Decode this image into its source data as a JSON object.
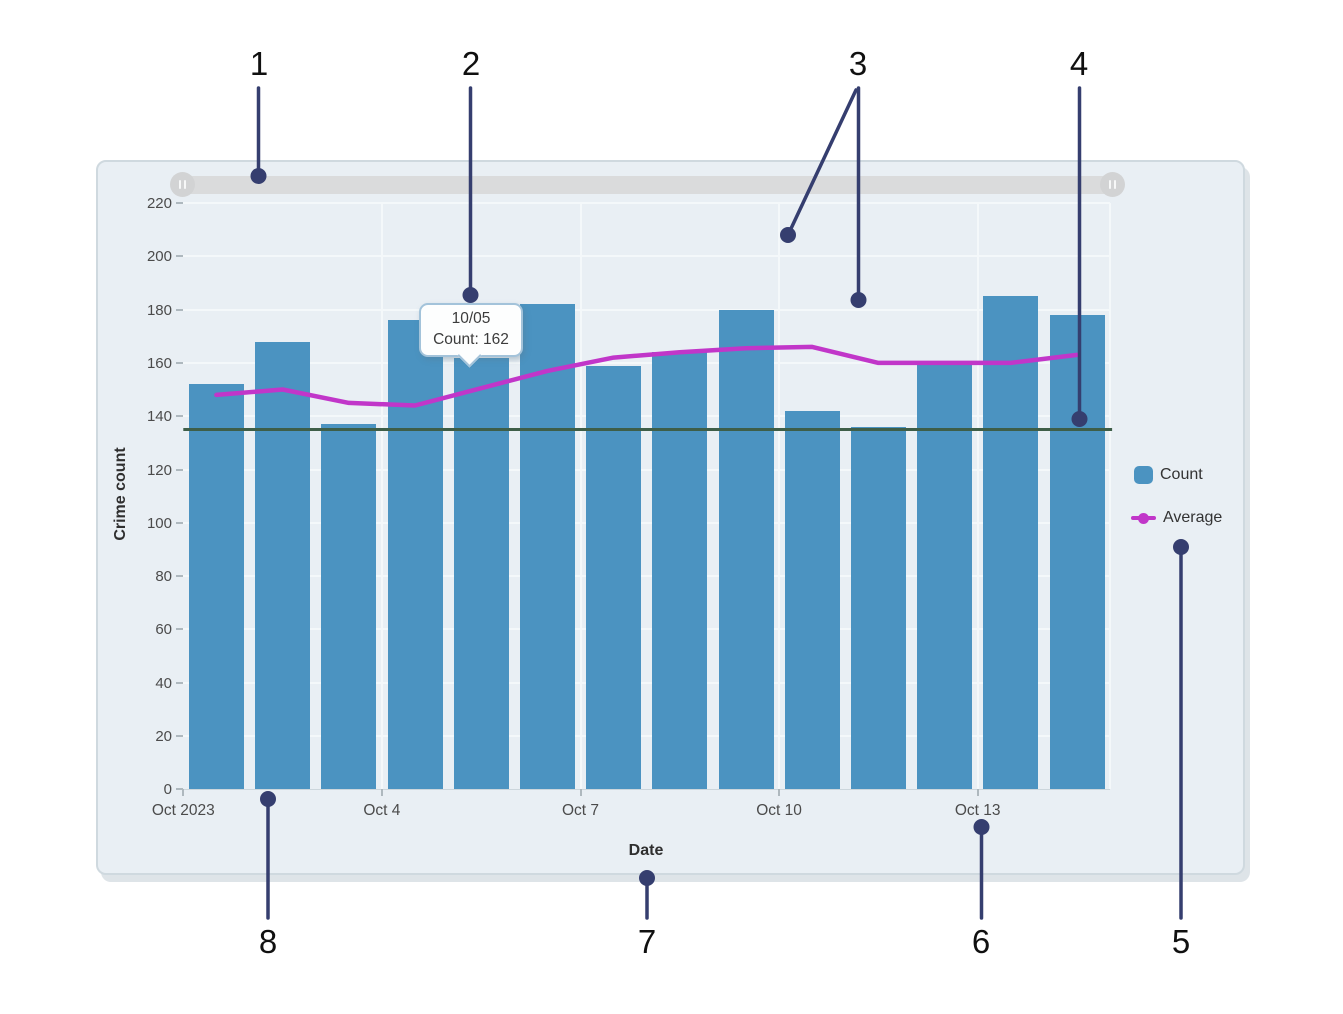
{
  "chart_data": {
    "type": "bar",
    "x": [
      "10/01",
      "10/02",
      "10/03",
      "10/04",
      "10/05",
      "10/06",
      "10/07",
      "10/08",
      "10/09",
      "10/10",
      "10/11",
      "10/12",
      "10/13",
      "10/14"
    ],
    "series": [
      {
        "name": "Count",
        "type": "bar",
        "color": "#4b93c1",
        "values": [
          152,
          168,
          137,
          176,
          162,
          182,
          159,
          164,
          180,
          142,
          136,
          160,
          185,
          178
        ]
      },
      {
        "name": "Average",
        "type": "line",
        "color": "#c136c9",
        "values": [
          148,
          150,
          145,
          144,
          150.5,
          157,
          162,
          164,
          165.5,
          166,
          160,
          160,
          160,
          163
        ]
      }
    ],
    "reference_line": {
      "value": 135,
      "color": "#3e5e48"
    },
    "title": "",
    "xlabel": "Date",
    "ylabel": "Crime count",
    "ylim": [
      0,
      220
    ],
    "y_ticks": [
      0,
      20,
      40,
      60,
      80,
      100,
      120,
      140,
      160,
      180,
      200,
      220
    ],
    "x_tick_labels": [
      "Oct 2023",
      "Oct 4",
      "Oct 7",
      "Oct 10",
      "Oct 13"
    ],
    "grid": true,
    "legend_position": "right-middle"
  },
  "tooltip": {
    "line1": "10/05",
    "line2": "Count: 162"
  },
  "legend": {
    "items": [
      {
        "label": "Count",
        "swatch": "blue-square"
      },
      {
        "label": "Average",
        "swatch": "magenta-line-dot"
      }
    ]
  },
  "scrollbar": {
    "type": "horizontal-range",
    "handles": [
      "pause-grip",
      "pause-grip"
    ]
  },
  "annotations": {
    "color": "#353e6f",
    "items": [
      {
        "label": "1",
        "num": [
          259,
          64
        ],
        "lines": [
          [
            258.5,
            88,
            258.5,
            176
          ]
        ],
        "dots": [
          [
            258.5,
            176
          ]
        ]
      },
      {
        "label": "2",
        "num": [
          471,
          64
        ],
        "lines": [
          [
            470.5,
            88,
            470.5,
            295
          ]
        ],
        "dots": [
          [
            470.5,
            295
          ]
        ]
      },
      {
        "label": "3",
        "num": [
          858,
          64
        ],
        "lines": [
          [
            858.5,
            88,
            858.5,
            300
          ],
          [
            856,
            90,
            788,
            235
          ]
        ],
        "dots": [
          [
            858.5,
            300
          ],
          [
            788,
            235
          ]
        ]
      },
      {
        "label": "4",
        "num": [
          1079,
          64
        ],
        "lines": [
          [
            1079.5,
            88,
            1079.5,
            419
          ]
        ],
        "dots": [
          [
            1079.5,
            419
          ]
        ]
      },
      {
        "label": "5",
        "num": [
          1181,
          942
        ],
        "lines": [
          [
            1181,
            547,
            1181,
            918
          ]
        ],
        "dots": [
          [
            1181,
            547
          ]
        ]
      },
      {
        "label": "6",
        "num": [
          981,
          942
        ],
        "lines": [
          [
            981.5,
            827,
            981.5,
            918
          ]
        ],
        "dots": [
          [
            981.5,
            827
          ]
        ]
      },
      {
        "label": "7",
        "num": [
          647,
          942
        ],
        "lines": [
          [
            647,
            878,
            647,
            918
          ]
        ],
        "dots": [
          [
            647,
            878
          ]
        ]
      },
      {
        "label": "8",
        "num": [
          268,
          942
        ],
        "lines": [
          [
            268,
            799,
            268,
            918
          ]
        ],
        "dots": [
          [
            268,
            799
          ]
        ]
      }
    ]
  }
}
